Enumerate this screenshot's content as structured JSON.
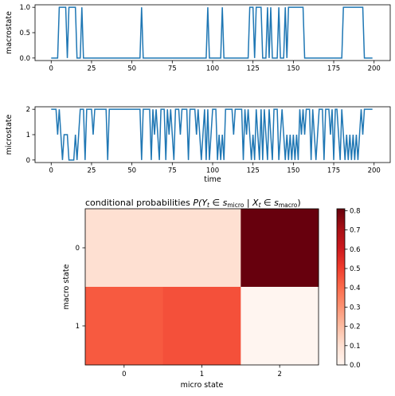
{
  "colors": {
    "line": "#1f77b4",
    "axis": "#000000",
    "heat_low": "#fff5f0",
    "heat_high": "#67000d"
  },
  "chart_data": [
    {
      "type": "line",
      "ylabel": "macrostate",
      "xlabel": "",
      "xlim": [
        -10,
        210
      ],
      "ylim": [
        -0.05,
        1.05
      ],
      "xticks": [
        "0",
        "25",
        "50",
        "75",
        "100",
        "125",
        "150",
        "175",
        "200"
      ],
      "yticks": [
        "0.0",
        "0.5",
        "1.0"
      ],
      "segments": [
        [
          0,
          0
        ],
        [
          4,
          0
        ],
        [
          5,
          1
        ],
        [
          9,
          1
        ],
        [
          10,
          0
        ],
        [
          11,
          1
        ],
        [
          15,
          1
        ],
        [
          16,
          0
        ],
        [
          18,
          0
        ],
        [
          19,
          1
        ],
        [
          20,
          0
        ],
        [
          55,
          0
        ],
        [
          56,
          1
        ],
        [
          57,
          0
        ],
        [
          96,
          0
        ],
        [
          97,
          1
        ],
        [
          98,
          0
        ],
        [
          105,
          0
        ],
        [
          106,
          1
        ],
        [
          107,
          0
        ],
        [
          122,
          0
        ],
        [
          123,
          1
        ],
        [
          125,
          1
        ],
        [
          126,
          0
        ],
        [
          127,
          1
        ],
        [
          130,
          1
        ],
        [
          131,
          0
        ],
        [
          133,
          0
        ],
        [
          134,
          1
        ],
        [
          135,
          0
        ],
        [
          136,
          1
        ],
        [
          137,
          0
        ],
        [
          140,
          0
        ],
        [
          141,
          1
        ],
        [
          142,
          0
        ],
        [
          144,
          0
        ],
        [
          145,
          1
        ],
        [
          146,
          0
        ],
        [
          147,
          1
        ],
        [
          156,
          1
        ],
        [
          157,
          0
        ],
        [
          180,
          0
        ],
        [
          181,
          1
        ],
        [
          193,
          1
        ],
        [
          194,
          0
        ],
        [
          199,
          0
        ]
      ]
    },
    {
      "type": "line",
      "ylabel": "microstate",
      "xlabel": "time",
      "xlim": [
        -10,
        210
      ],
      "ylim": [
        -0.1,
        2.1
      ],
      "xticks": [
        "0",
        "25",
        "50",
        "75",
        "100",
        "125",
        "150",
        "175",
        "200"
      ],
      "yticks": [
        "0",
        "1",
        "2"
      ],
      "segments": [
        [
          0,
          2
        ],
        [
          3,
          2
        ],
        [
          4,
          1
        ],
        [
          5,
          2
        ],
        [
          6,
          1
        ],
        [
          7,
          0
        ],
        [
          8,
          1
        ],
        [
          10,
          1
        ],
        [
          11,
          0
        ],
        [
          14,
          0
        ],
        [
          15,
          1
        ],
        [
          16,
          0
        ],
        [
          17,
          1
        ],
        [
          18,
          2
        ],
        [
          20,
          2
        ],
        [
          21,
          0
        ],
        [
          22,
          2
        ],
        [
          25,
          2
        ],
        [
          26,
          1
        ],
        [
          27,
          2
        ],
        [
          34,
          2
        ],
        [
          35,
          0
        ],
        [
          36,
          2
        ],
        [
          55,
          2
        ],
        [
          56,
          0
        ],
        [
          57,
          2
        ],
        [
          61,
          2
        ],
        [
          62,
          0
        ],
        [
          63,
          2
        ],
        [
          64,
          1
        ],
        [
          65,
          2
        ],
        [
          67,
          0
        ],
        [
          68,
          2
        ],
        [
          70,
          2
        ],
        [
          71,
          0
        ],
        [
          72,
          2
        ],
        [
          73,
          1
        ],
        [
          74,
          2
        ],
        [
          76,
          0
        ],
        [
          77,
          2
        ],
        [
          79,
          2
        ],
        [
          80,
          1
        ],
        [
          81,
          2
        ],
        [
          84,
          2
        ],
        [
          85,
          0
        ],
        [
          86,
          2
        ],
        [
          89,
          2
        ],
        [
          90,
          1
        ],
        [
          91,
          2
        ],
        [
          93,
          0
        ],
        [
          94,
          1
        ],
        [
          95,
          2
        ],
        [
          96,
          0
        ],
        [
          97,
          2
        ],
        [
          98,
          0
        ],
        [
          99,
          1
        ],
        [
          100,
          2
        ],
        [
          102,
          2
        ],
        [
          103,
          0
        ],
        [
          104,
          1
        ],
        [
          105,
          0
        ],
        [
          106,
          1
        ],
        [
          107,
          0
        ],
        [
          108,
          2
        ],
        [
          112,
          2
        ],
        [
          113,
          1
        ],
        [
          114,
          2
        ],
        [
          118,
          2
        ],
        [
          119,
          0
        ],
        [
          120,
          2
        ],
        [
          121,
          1
        ],
        [
          122,
          2
        ],
        [
          123,
          1
        ],
        [
          124,
          0
        ],
        [
          125,
          1
        ],
        [
          126,
          0
        ],
        [
          127,
          2
        ],
        [
          128,
          1
        ],
        [
          129,
          0
        ],
        [
          130,
          2
        ],
        [
          131,
          0
        ],
        [
          132,
          2
        ],
        [
          133,
          1
        ],
        [
          134,
          0
        ],
        [
          135,
          2
        ],
        [
          136,
          1
        ],
        [
          137,
          0
        ],
        [
          138,
          2
        ],
        [
          140,
          2
        ],
        [
          141,
          0
        ],
        [
          142,
          1
        ],
        [
          143,
          2
        ],
        [
          144,
          1
        ],
        [
          145,
          0
        ],
        [
          146,
          1
        ],
        [
          147,
          0
        ],
        [
          148,
          1
        ],
        [
          149,
          0
        ],
        [
          150,
          1
        ],
        [
          151,
          0
        ],
        [
          152,
          1
        ],
        [
          153,
          0
        ],
        [
          154,
          2
        ],
        [
          155,
          1
        ],
        [
          156,
          2
        ],
        [
          157,
          1
        ],
        [
          158,
          2
        ],
        [
          160,
          2
        ],
        [
          161,
          0
        ],
        [
          162,
          2
        ],
        [
          163,
          1
        ],
        [
          164,
          0
        ],
        [
          165,
          1
        ],
        [
          166,
          2
        ],
        [
          168,
          2
        ],
        [
          169,
          0
        ],
        [
          170,
          2
        ],
        [
          172,
          2
        ],
        [
          173,
          1
        ],
        [
          174,
          2
        ],
        [
          175,
          0
        ],
        [
          176,
          2
        ],
        [
          177,
          2
        ],
        [
          178,
          1
        ],
        [
          179,
          0
        ],
        [
          180,
          2
        ],
        [
          181,
          1
        ],
        [
          182,
          0
        ],
        [
          183,
          1
        ],
        [
          184,
          0
        ],
        [
          185,
          1
        ],
        [
          186,
          0
        ],
        [
          187,
          1
        ],
        [
          188,
          0
        ],
        [
          189,
          1
        ],
        [
          190,
          0
        ],
        [
          191,
          1
        ],
        [
          192,
          2
        ],
        [
          193,
          1
        ],
        [
          194,
          2
        ],
        [
          199,
          2
        ]
      ]
    },
    {
      "type": "heatmap",
      "title_prefix": "conditional probabilities ",
      "title_formula": "P(Y",
      "title_sub_t": "t",
      "title_in": " ∈ s",
      "title_sub_micro": "micro",
      "title_mid": " | X",
      "title_in2": " ∈ s",
      "title_sub_macro": "macro",
      "title_end": ")",
      "xlabel": "micro state",
      "ylabel": "macro state",
      "x_categories": [
        "0",
        "1",
        "2"
      ],
      "y_categories": [
        "0",
        "1"
      ],
      "values": [
        [
          0.1,
          0.1,
          0.81
        ],
        [
          0.44,
          0.46,
          0.0
        ]
      ],
      "colorbar": {
        "min": 0.0,
        "max": 0.81,
        "ticks": [
          "0.0",
          "0.1",
          "0.2",
          "0.3",
          "0.4",
          "0.5",
          "0.6",
          "0.7",
          "0.8"
        ]
      }
    }
  ]
}
